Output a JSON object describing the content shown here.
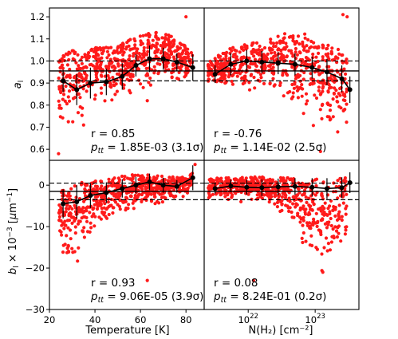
{
  "chart_data": [
    {
      "type": "scatter",
      "panel": "a-vs-temperature",
      "ylabel": "a_l",
      "xlim": [
        20,
        88
      ],
      "ylim": [
        0.55,
        1.24
      ],
      "yticks": [
        0.6,
        0.7,
        0.8,
        0.9,
        1.0,
        1.1,
        1.2
      ],
      "ytick_labels": [
        "0.6",
        "0.7",
        "0.8",
        "0.9",
        "1.0",
        "1.1",
        "1.2"
      ],
      "hlines": {
        "solid": 0.955,
        "dashed": [
          0.91,
          1.0
        ]
      },
      "binned": {
        "x": [
          26,
          32,
          38,
          45,
          52,
          58,
          64,
          70,
          76,
          83
        ],
        "y": [
          0.91,
          0.87,
          0.9,
          0.905,
          0.93,
          0.98,
          1.01,
          1.01,
          0.995,
          0.97
        ],
        "yerr": [
          0.05,
          0.07,
          0.07,
          0.06,
          0.06,
          0.05,
          0.06,
          0.05,
          0.04,
          0.06
        ]
      },
      "scatter_envelope": {
        "x": [
          24,
          30,
          36,
          42,
          48,
          54,
          60,
          66,
          72,
          78,
          83
        ],
        "low": [
          0.72,
          0.64,
          0.78,
          0.8,
          0.82,
          0.84,
          0.86,
          0.88,
          0.9,
          0.9,
          0.93
        ],
        "high": [
          1.02,
          1.05,
          1.06,
          1.06,
          1.07,
          1.09,
          1.12,
          1.14,
          1.13,
          1.08,
          1.05
        ],
        "outliers": [
          [
            24,
            0.58
          ],
          [
            80,
            1.2
          ],
          [
            63,
            0.82
          ],
          [
            35,
            0.71
          ]
        ]
      },
      "stats": {
        "r": "r = 0.85",
        "ptt": "= 1.85E-03 (3.1σ)"
      }
    },
    {
      "type": "scatter",
      "panel": "a-vs-column-density",
      "xscale": "log",
      "xlim": [
        2.2e+21,
        4.5e+23
      ],
      "ylim": [
        0.55,
        1.24
      ],
      "hlines": {
        "solid": 0.955,
        "dashed": [
          0.91,
          1.0
        ]
      },
      "binned": {
        "x": [
          3.2e+21,
          5.5e+21,
          9.5e+21,
          1.6e+22,
          2.8e+22,
          5e+22,
          9e+22,
          1.5e+23,
          2.5e+23,
          3.3e+23
        ],
        "y": [
          0.94,
          0.985,
          1.0,
          0.995,
          0.99,
          0.985,
          0.97,
          0.95,
          0.92,
          0.87
        ],
        "yerr": [
          0.04,
          0.05,
          0.05,
          0.05,
          0.05,
          0.05,
          0.05,
          0.06,
          0.06,
          0.06
        ]
      },
      "scatter_envelope": {
        "x": [
          2.5e+21,
          5e+21,
          1e+22,
          2e+22,
          4e+22,
          8e+22,
          1.5e+23,
          3e+23
        ],
        "low": [
          0.86,
          0.84,
          0.84,
          0.84,
          0.8,
          0.7,
          0.66,
          0.68
        ],
        "high": [
          1.0,
          1.06,
          1.08,
          1.1,
          1.13,
          1.12,
          1.08,
          1.03
        ],
        "outliers": [
          [
            2.6e+23,
            1.21
          ],
          [
            3e+23,
            1.2
          ],
          [
            1.2e+23,
            0.59
          ]
        ]
      },
      "stats": {
        "r": "r = -0.76",
        "ptt": "= 1.14E-02 (2.5σ)"
      }
    },
    {
      "type": "scatter",
      "panel": "b-vs-temperature",
      "xlabel": "Temperature [K]",
      "ylabel": "b_l × 10^-3 [µm^-1]",
      "xlim": [
        20,
        88
      ],
      "ylim": [
        -30,
        6
      ],
      "xticks": [
        20,
        40,
        60,
        80
      ],
      "xtick_labels": [
        "20",
        "40",
        "60",
        "80"
      ],
      "yticks": [
        -30,
        -20,
        -10,
        0
      ],
      "ytick_labels": [
        "−30",
        "−20",
        "−10",
        "0"
      ],
      "hlines": {
        "solid": -1.5,
        "dashed": [
          -3.5,
          0.5
        ]
      },
      "binned": {
        "x": [
          26,
          32,
          38,
          45,
          52,
          58,
          64,
          70,
          76,
          83
        ],
        "y": [
          -4.5,
          -4,
          -2.5,
          -1.8,
          -0.8,
          0,
          0.8,
          0,
          -0.3,
          1.8
        ],
        "yerr": [
          3.5,
          4,
          3,
          2.5,
          2.2,
          2,
          2,
          1.8,
          1.5,
          3
        ]
      },
      "scatter_envelope": {
        "x": [
          24,
          30,
          36,
          42,
          48,
          54,
          60,
          66,
          72,
          78,
          83
        ],
        "low": [
          -15,
          -24,
          -12,
          -10,
          -8,
          -7,
          -6,
          -5,
          -4,
          -3,
          -2
        ],
        "high": [
          -1,
          0,
          1,
          1,
          2,
          2.5,
          2.5,
          2.5,
          2,
          2,
          3
        ],
        "outliers": [
          [
            63,
            -23
          ],
          [
            84,
            5
          ]
        ]
      },
      "stats": {
        "r": "r = 0.93",
        "ptt": "= 9.06E-05 (3.9σ)"
      }
    },
    {
      "type": "scatter",
      "panel": "b-vs-column-density",
      "xlabel": "N(H₂) [cm⁻²]",
      "xscale": "log",
      "xlim": [
        2.2e+21,
        4.5e+23
      ],
      "ylim": [
        -30,
        6
      ],
      "xticks": [
        1e+22,
        1e+23
      ],
      "xtick_labels": [
        "10",
        "10"
      ],
      "xtick_exponents": [
        "22",
        "23"
      ],
      "hlines": {
        "solid": -1.5,
        "dashed": [
          -3.5,
          0.5
        ]
      },
      "binned": {
        "x": [
          3.2e+21,
          5.5e+21,
          9.5e+21,
          1.6e+22,
          2.8e+22,
          5e+22,
          9e+22,
          1.5e+23,
          2.5e+23,
          3.3e+23
        ],
        "y": [
          -0.8,
          -0.2,
          -0.5,
          -0.6,
          -0.4,
          -0.3,
          -0.5,
          -0.8,
          -0.6,
          0.6
        ],
        "yerr": [
          1.2,
          1.5,
          1.8,
          2,
          2,
          2,
          2.2,
          2.5,
          2.5,
          2.5
        ]
      },
      "scatter_envelope": {
        "x": [
          2.5e+21,
          5e+21,
          1e+22,
          2e+22,
          4e+22,
          8e+22,
          1.5e+23,
          3e+23
        ],
        "low": [
          -3,
          -4,
          -4,
          -5,
          -8,
          -18,
          -22,
          -15
        ],
        "high": [
          1.5,
          2,
          2,
          2,
          2,
          1.5,
          1.5,
          2
        ],
        "outliers": [
          [
            1.2e+22,
            -23
          ],
          [
            1.3e+23,
            -21
          ]
        ]
      },
      "stats": {
        "r": "r = 0.08",
        "ptt": "= 8.24E-01 (0.2σ)"
      }
    }
  ],
  "colors": {
    "points": "#ff1a1a",
    "binned": "#000000"
  }
}
